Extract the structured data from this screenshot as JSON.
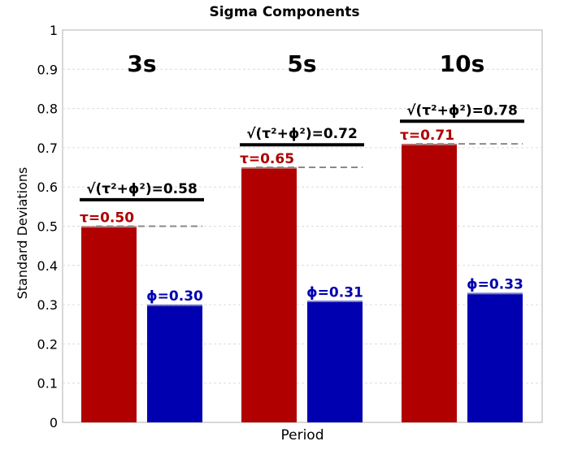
{
  "chart_data": {
    "type": "bar",
    "title": "Sigma Components",
    "xlabel": "Period",
    "ylabel": "Standard Deviations",
    "ylim": [
      0,
      1
    ],
    "yticks": [
      "0",
      "0.1",
      "0.2",
      "0.3",
      "0.4",
      "0.5",
      "0.6",
      "0.7",
      "0.8",
      "0.9",
      "1"
    ],
    "grid": true,
    "categories": [
      "3s",
      "5s",
      "10s"
    ],
    "series": [
      {
        "name": "τ",
        "color": "#b00000",
        "values": [
          0.5,
          0.65,
          0.71
        ],
        "labels": [
          "τ=0.50",
          "τ=0.65",
          "τ=0.71"
        ]
      },
      {
        "name": "ϕ",
        "color": "#0000b0",
        "values": [
          0.3,
          0.31,
          0.33
        ],
        "labels": [
          "ϕ=0.30",
          "ϕ=0.31",
          "ϕ=0.33"
        ]
      }
    ],
    "total": {
      "values": [
        0.58,
        0.72,
        0.78
      ],
      "labels": [
        "√(τ²+ϕ²)=0.58",
        "√(τ²+ϕ²)=0.72",
        "√(τ²+ϕ²)=0.78"
      ]
    }
  }
}
